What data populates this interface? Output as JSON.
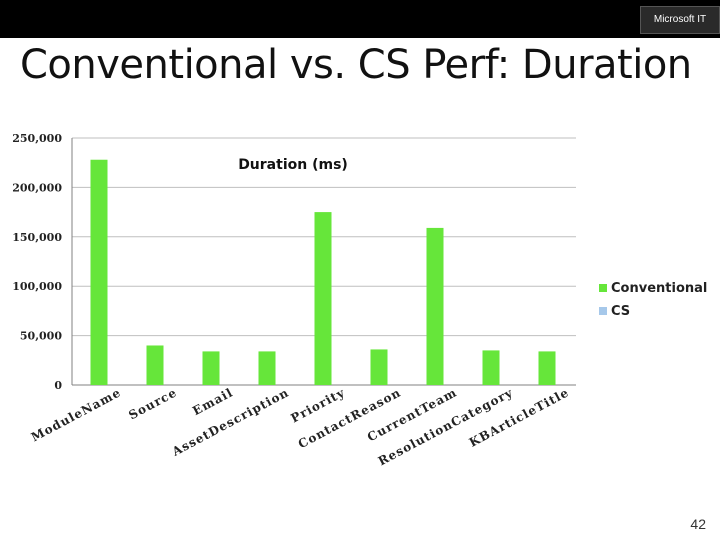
{
  "header": {
    "brand": "Microsoft IT"
  },
  "slide": {
    "title": "Conventional vs. CS Perf: Duration",
    "page_number": "42"
  },
  "colors": {
    "conventional": "#66e63a",
    "cs": "#a6c8ea",
    "text": "#222222"
  },
  "chart_data": {
    "type": "bar",
    "title": "Duration (ms)",
    "categories": [
      "ModuleName",
      "Source",
      "Email",
      "AssetDescription",
      "Priority",
      "ContactReason",
      "CurrentTeam",
      "ResolutionCategory",
      "KBArticleTitle"
    ],
    "series": [
      {
        "name": "Conventional",
        "values": [
          228000,
          40000,
          34000,
          34000,
          175000,
          36000,
          159000,
          35000,
          34000
        ]
      },
      {
        "name": "CS",
        "values": [
          0,
          0,
          0,
          0,
          0,
          0,
          0,
          0,
          0
        ]
      }
    ],
    "yticks": [
      "0",
      "50,000",
      "100,000",
      "150,000",
      "200,000",
      "250,000"
    ],
    "ylim": [
      0,
      250000
    ],
    "grid": true,
    "legend": "right"
  }
}
